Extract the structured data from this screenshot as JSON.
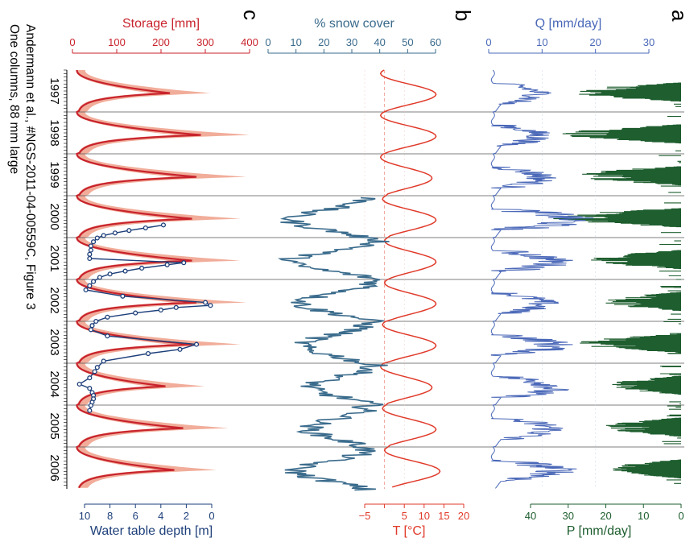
{
  "caption": {
    "line1": "Andermann et al., #NGS-2011-04-00559C, Figure 3",
    "line2": "One columns, 88 mm large"
  },
  "panels": {
    "a": "a",
    "b": "b",
    "c": "c"
  },
  "colors": {
    "precip": "#1e5e2f",
    "discharge": "#4a68b8",
    "temperature": "#e03a2a",
    "snow": "#3a6b8c",
    "storage": "#c8232c",
    "storage_band": "#ef9f88",
    "wtd": "#1d3f7a"
  },
  "chart_data": [
    {
      "type": "area",
      "panel": "a",
      "series_label": "P [mm/day]",
      "axis_ticks": [
        0,
        10,
        20,
        30,
        40
      ],
      "xlim": [
        0,
        40
      ],
      "y_years": [
        "1997",
        "1998",
        "1999",
        "2000",
        "2001",
        "2002",
        "2003",
        "2004",
        "2005",
        "2006"
      ],
      "monsoon_peak_mm_day": [
        30,
        32,
        30,
        35,
        25,
        22,
        28,
        20,
        22,
        20
      ]
    },
    {
      "type": "line",
      "panel": "a",
      "series_label": "Q [mm/day]",
      "axis_ticks": [
        0,
        10,
        20,
        30
      ],
      "xlim": [
        0,
        30
      ],
      "annual_peak_mm_day": [
        12,
        12,
        13,
        20,
        16,
        13,
        16,
        16,
        15,
        17
      ]
    },
    {
      "type": "line",
      "panel": "b",
      "series_label": "T [°C]",
      "axis_ticks": [
        -5,
        0,
        5,
        10,
        15,
        20
      ],
      "tick_labels": [
        "−5",
        "",
        "5",
        "10",
        "15",
        "20"
      ],
      "xlim": [
        -5,
        20
      ],
      "annual_range_c": [
        [
          -1,
          13
        ],
        [
          -1,
          13
        ],
        [
          -1,
          12
        ],
        [
          -0.5,
          13
        ],
        [
          0,
          13
        ],
        [
          0,
          13
        ],
        [
          -0.5,
          13
        ],
        [
          -1,
          12
        ],
        [
          -0.5,
          13
        ],
        [
          0,
          14
        ]
      ]
    },
    {
      "type": "line",
      "panel": "b",
      "series_label": "% snow cover",
      "axis_ticks": [
        0,
        10,
        20,
        30,
        40,
        50,
        60
      ],
      "xlim": [
        0,
        60
      ],
      "snow_start_year": 2000,
      "annual_range_pct": [
        [
          8,
          35
        ],
        [
          8,
          40
        ],
        [
          12,
          38
        ],
        [
          12,
          35
        ],
        [
          15,
          38
        ],
        [
          15,
          35
        ],
        [
          10,
          35
        ]
      ]
    },
    {
      "type": "line",
      "panel": "c",
      "series_label": "Storage [mm]",
      "axis_ticks": [
        0,
        100,
        200,
        300,
        400
      ],
      "xlim": [
        0,
        400
      ],
      "annual_peak_mm": [
        220,
        290,
        280,
        270,
        270,
        280,
        270,
        210,
        250,
        230
      ],
      "annual_trough_mm": [
        10,
        10,
        10,
        10,
        10,
        10,
        10,
        10,
        10,
        10
      ]
    },
    {
      "type": "scatter",
      "panel": "c",
      "series_label": "Water table depth [m]",
      "axis_ticks": [
        0,
        2,
        4,
        6,
        8,
        10
      ],
      "tick_labels": [
        "10",
        "8",
        "6",
        "4",
        "2",
        "0"
      ],
      "xlim": [
        10,
        0
      ],
      "points": [
        {
          "t": 2000.65,
          "v": 3.8
        },
        {
          "t": 2000.72,
          "v": 5.2
        },
        {
          "t": 2000.78,
          "v": 6.5
        },
        {
          "t": 2000.84,
          "v": 7.6
        },
        {
          "t": 2000.9,
          "v": 8.5
        },
        {
          "t": 2000.96,
          "v": 9.0
        },
        {
          "t": 2001.05,
          "v": 9.3
        },
        {
          "t": 2001.15,
          "v": 9.5
        },
        {
          "t": 2001.25,
          "v": 9.5
        },
        {
          "t": 2001.35,
          "v": 9.6
        },
        {
          "t": 2001.45,
          "v": 9.6
        },
        {
          "t": 2001.55,
          "v": 2.2
        },
        {
          "t": 2001.6,
          "v": 3.5
        },
        {
          "t": 2001.68,
          "v": 5.5
        },
        {
          "t": 2001.75,
          "v": 6.8
        },
        {
          "t": 2001.82,
          "v": 8.0
        },
        {
          "t": 2001.9,
          "v": 8.8
        },
        {
          "t": 2002.0,
          "v": 9.3
        },
        {
          "t": 2002.1,
          "v": 9.6
        },
        {
          "t": 2002.2,
          "v": 9.9
        },
        {
          "t": 2002.35,
          "v": 7.0
        },
        {
          "t": 2002.5,
          "v": 0.5
        },
        {
          "t": 2002.57,
          "v": 0.1
        },
        {
          "t": 2002.62,
          "v": 2.8
        },
        {
          "t": 2002.68,
          "v": 4.0
        },
        {
          "t": 2002.75,
          "v": 6.0
        },
        {
          "t": 2002.85,
          "v": 8.2
        },
        {
          "t": 2002.95,
          "v": 9.1
        },
        {
          "t": 2003.05,
          "v": 9.4
        },
        {
          "t": 2003.15,
          "v": 9.5
        },
        {
          "t": 2003.3,
          "v": 8.2
        },
        {
          "t": 2003.5,
          "v": 1.2
        },
        {
          "t": 2003.62,
          "v": 2.5
        },
        {
          "t": 2003.72,
          "v": 5.0
        },
        {
          "t": 2003.9,
          "v": 8.5
        },
        {
          "t": 2004.05,
          "v": 9.0
        },
        {
          "t": 2004.15,
          "v": 9.2
        },
        {
          "t": 2004.3,
          "v": 9.6
        },
        {
          "t": 2004.45,
          "v": 10.4
        },
        {
          "t": 2004.55,
          "v": 9.6
        },
        {
          "t": 2004.65,
          "v": 9.4
        },
        {
          "t": 2004.72,
          "v": 9.3
        },
        {
          "t": 2004.8,
          "v": 9.3
        },
        {
          "t": 2004.88,
          "v": 9.4
        },
        {
          "t": 2004.96,
          "v": 9.5
        },
        {
          "t": 2005.08,
          "v": 9.6
        }
      ]
    }
  ]
}
